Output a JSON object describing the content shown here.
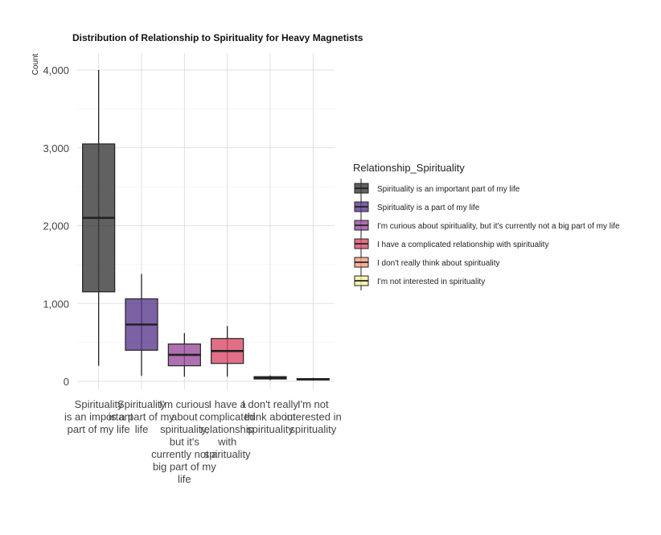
{
  "chart_data": {
    "type": "box",
    "title": "Distribution of Relationship to Spirituality for Heavy Magnetists",
    "xlabel": "",
    "ylabel": "Count",
    "ylim": [
      0,
      4000
    ],
    "yticks": [
      0,
      1000,
      2000,
      3000,
      4000
    ],
    "ytick_labels": [
      "0",
      "1,000",
      "2,000",
      "3,000",
      "4,000"
    ],
    "grid": true,
    "legend": {
      "title": "Relationship_Spirituality",
      "placement": "right"
    },
    "categories": [
      {
        "name": "Spirituality is an important part of my life",
        "tick_lines": [
          "Spirituality",
          "is an important",
          "part of my life"
        ],
        "legend_label": "Spirituality is an important part of my life",
        "color": "#3a3a3a",
        "min": 200,
        "q1": 1150,
        "median": 2100,
        "q3": 3050,
        "max": 4000
      },
      {
        "name": "Spirituality is a part of my life",
        "tick_lines": [
          "Spirituality",
          "is a part of my",
          "life"
        ],
        "legend_label": "Spirituality is a part of my life",
        "color": "#5c3a8e",
        "min": 70,
        "q1": 400,
        "median": 730,
        "q3": 1060,
        "max": 1380
      },
      {
        "name": "I'm curious about spirituality, but it's currently not a big part of my life",
        "tick_lines": [
          "I'm curious",
          "about",
          "spirituality,",
          "but it's",
          "currently not a",
          "big part of my",
          "life"
        ],
        "legend_label": "I'm curious about spirituality, but it's currently not a big part of my life",
        "color": "#9a4c9c",
        "min": 60,
        "q1": 200,
        "median": 340,
        "q3": 480,
        "max": 620
      },
      {
        "name": "I have a complicated relationship with spirituality",
        "tick_lines": [
          "I have a",
          "complicated",
          "relationship",
          "with",
          "spirituality"
        ],
        "legend_label": "I have a complicated relationship with spirituality",
        "color": "#d94c69",
        "min": 60,
        "q1": 230,
        "median": 390,
        "q3": 550,
        "max": 710
      },
      {
        "name": "I don't really think about spirituality",
        "tick_lines": [
          "I don't really",
          "think about",
          "spirituality"
        ],
        "legend_label": "I don't really think about spirituality",
        "color": "#f8a07e",
        "min": 15,
        "q1": 30,
        "median": 45,
        "q3": 60,
        "max": 75
      },
      {
        "name": "I'm not interested in spirituality",
        "tick_lines": [
          "I'm not",
          "interested in",
          "spirituality"
        ],
        "legend_label": "I'm not interested in spirituality",
        "color": "#f5f1a4",
        "min": 10,
        "q1": 20,
        "median": 25,
        "q3": 35,
        "max": 45
      }
    ]
  }
}
